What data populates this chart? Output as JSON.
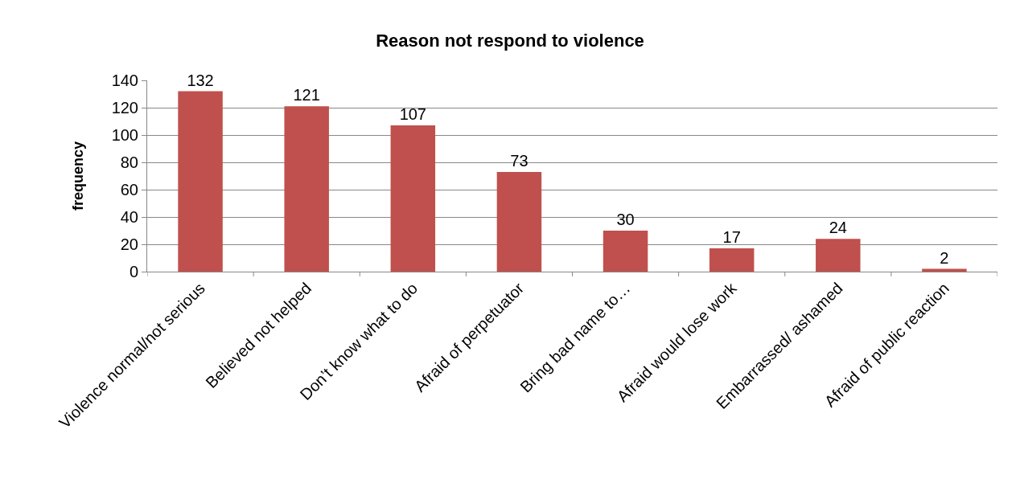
{
  "chart_data": {
    "type": "bar",
    "title": "Reason not respond to violence",
    "ylabel": "frequency",
    "categories": [
      "Violence normal/not serious",
      "Believed not helped",
      "Don’t know what to do",
      "Afraid of perpetuator",
      "Bring bad name to…",
      "Afraid would lose work",
      "Embarrassed/ ashamed",
      "Afraid of public reaction"
    ],
    "values": [
      132,
      121,
      107,
      73,
      30,
      17,
      24,
      2
    ],
    "color": "#c0504d",
    "ylim": [
      0,
      140
    ],
    "yticks": [
      0,
      20,
      40,
      60,
      80,
      100,
      120,
      140
    ],
    "grid": "y",
    "data_labels": true,
    "legend": false
  }
}
